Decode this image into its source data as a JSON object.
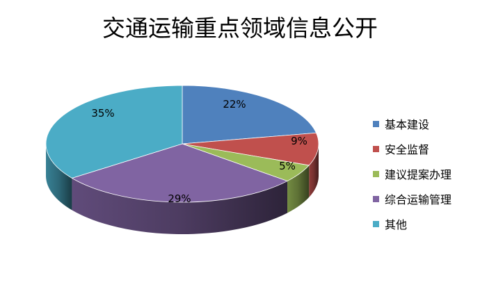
{
  "chart_data": {
    "type": "pie",
    "style": "3d",
    "title": "交通运输重点领域信息公开",
    "categories": [
      "基本建设",
      "安全监督",
      "建议提案办理",
      "综合运输管理",
      "其他"
    ],
    "values": [
      22,
      9,
      5,
      29,
      35
    ],
    "data_labels": [
      "22%",
      "9%",
      "5%",
      "29%",
      "35%"
    ],
    "colors": [
      "#4F81BD",
      "#C0504D",
      "#9BBB59",
      "#8064A2",
      "#4BACC6"
    ],
    "legend_position": "right"
  }
}
